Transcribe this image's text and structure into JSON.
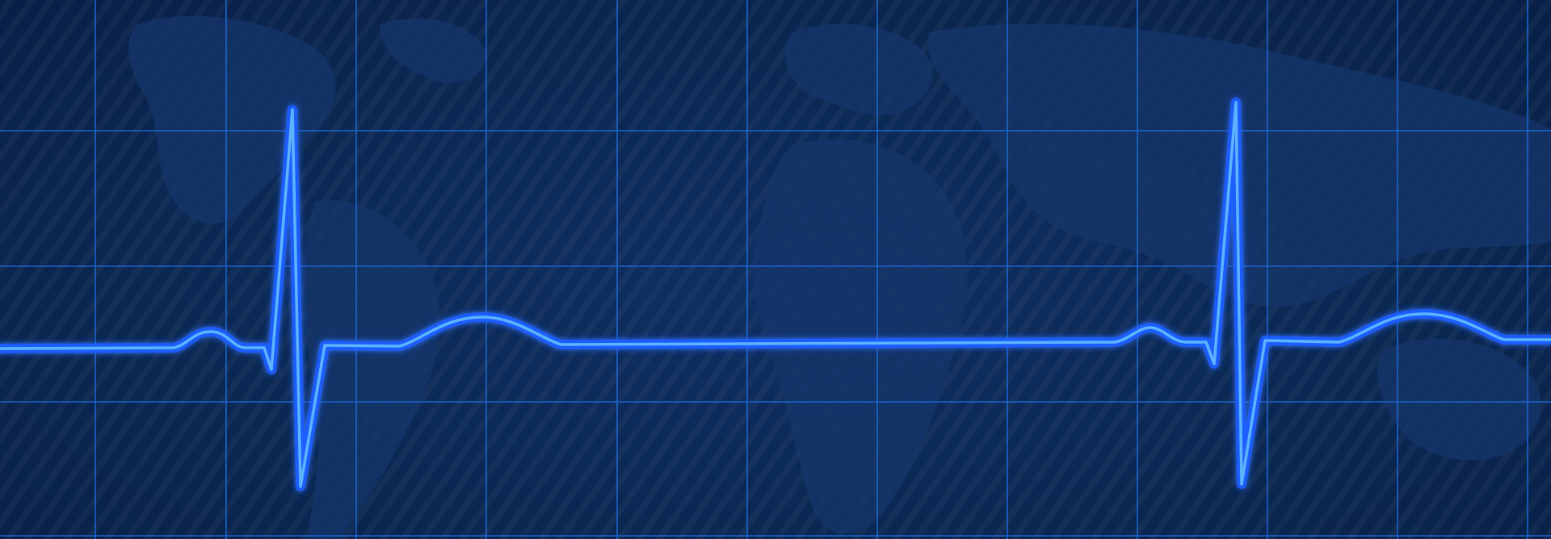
{
  "image": {
    "subject": "ecg-heartbeat-monitor-trace",
    "colors": {
      "background": "#0b2853",
      "grid_line": "#1f6fe0",
      "trace_glow": "#1b62ff",
      "trace_core": "#4aa8ff",
      "world_map": "#16386d"
    }
  }
}
